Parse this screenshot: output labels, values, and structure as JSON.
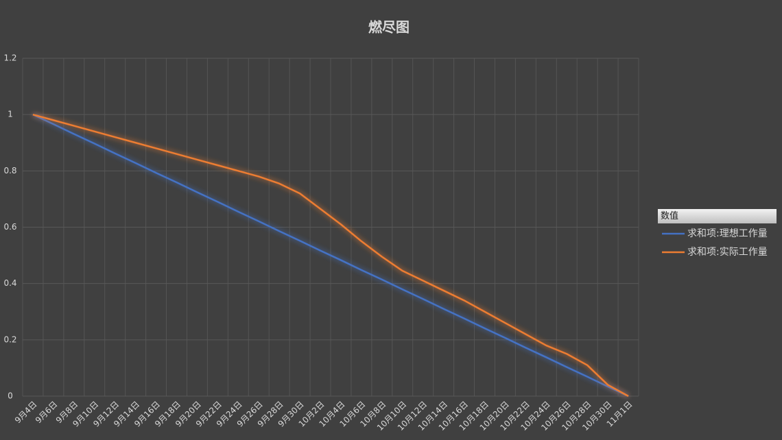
{
  "chart_data": {
    "type": "line",
    "title": "燃尽图",
    "categories": [
      "9月4日",
      "9月6日",
      "9月8日",
      "9月10日",
      "9月12日",
      "9月14日",
      "9月16日",
      "9月18日",
      "9月20日",
      "9月22日",
      "9月24日",
      "9月26日",
      "9月28日",
      "9月30日",
      "10月2日",
      "10月4日",
      "10月6日",
      "10月8日",
      "10月10日",
      "10月12日",
      "10月14日",
      "10月16日",
      "10月18日",
      "10月20日",
      "10月22日",
      "10月24日",
      "10月26日",
      "10月28日",
      "10月30日",
      "11月1日"
    ],
    "series": [
      {
        "name": "求和项:理想工作量",
        "color": "#4472c4",
        "values": [
          1,
          0.966,
          0.931,
          0.897,
          0.862,
          0.828,
          0.793,
          0.759,
          0.724,
          0.69,
          0.655,
          0.621,
          0.586,
          0.552,
          0.517,
          0.483,
          0.448,
          0.414,
          0.379,
          0.345,
          0.31,
          0.276,
          0.241,
          0.207,
          0.172,
          0.138,
          0.103,
          0.069,
          0.034,
          0
        ]
      },
      {
        "name": "求和项:实际工作量",
        "color": "#ed7d31",
        "values": [
          1,
          0.98,
          0.96,
          0.94,
          0.92,
          0.9,
          0.88,
          0.86,
          0.84,
          0.82,
          0.8,
          0.78,
          0.755,
          0.72,
          0.665,
          0.61,
          0.55,
          0.495,
          0.445,
          0.41,
          0.375,
          0.34,
          0.3,
          0.26,
          0.22,
          0.18,
          0.15,
          0.11,
          0.04,
          0
        ]
      }
    ],
    "legend_title": "数值",
    "ylim": [
      0,
      1.2
    ],
    "yticks": [
      0,
      0.2,
      0.4,
      0.6,
      0.8,
      1,
      1.2
    ],
    "grid": true,
    "legend": "right"
  }
}
